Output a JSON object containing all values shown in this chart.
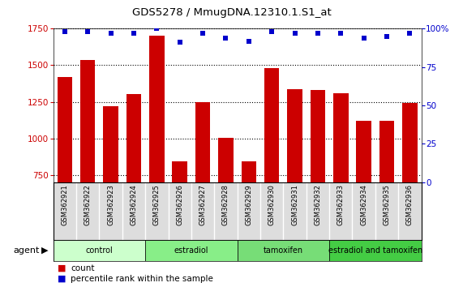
{
  "title": "GDS5278 / MmugDNA.12310.1.S1_at",
  "samples": [
    "GSM362921",
    "GSM362922",
    "GSM362923",
    "GSM362924",
    "GSM362925",
    "GSM362926",
    "GSM362927",
    "GSM362928",
    "GSM362929",
    "GSM362930",
    "GSM362931",
    "GSM362932",
    "GSM362933",
    "GSM362934",
    "GSM362935",
    "GSM362936"
  ],
  "counts": [
    1420,
    1535,
    1220,
    1305,
    1700,
    845,
    1248,
    1005,
    845,
    1480,
    1335,
    1330,
    1310,
    1120,
    1120,
    1240
  ],
  "percentile_ranks": [
    98,
    98,
    97,
    97,
    100,
    91,
    97,
    94,
    92,
    98,
    97,
    97,
    97,
    94,
    95,
    97
  ],
  "bar_color": "#cc0000",
  "dot_color": "#0000cc",
  "ylim_left": [
    700,
    1750
  ],
  "ylim_right": [
    0,
    100
  ],
  "yticks_left": [
    750,
    1000,
    1250,
    1500,
    1750
  ],
  "yticks_right": [
    0,
    25,
    50,
    75,
    100
  ],
  "groups": [
    {
      "label": "control",
      "start": 0,
      "end": 4,
      "color": "#ccffcc"
    },
    {
      "label": "estradiol",
      "start": 4,
      "end": 8,
      "color": "#88ee88"
    },
    {
      "label": "tamoxifen",
      "start": 8,
      "end": 12,
      "color": "#77dd77"
    },
    {
      "label": "estradiol and tamoxifen",
      "start": 12,
      "end": 16,
      "color": "#44cc44"
    }
  ],
  "agent_label": "agent",
  "legend_count_label": "count",
  "legend_percentile_label": "percentile rank within the sample",
  "background_color": "#ffffff",
  "plot_bg_color": "#ffffff",
  "label_bg_color": "#dddddd",
  "bar_bottom": 700
}
